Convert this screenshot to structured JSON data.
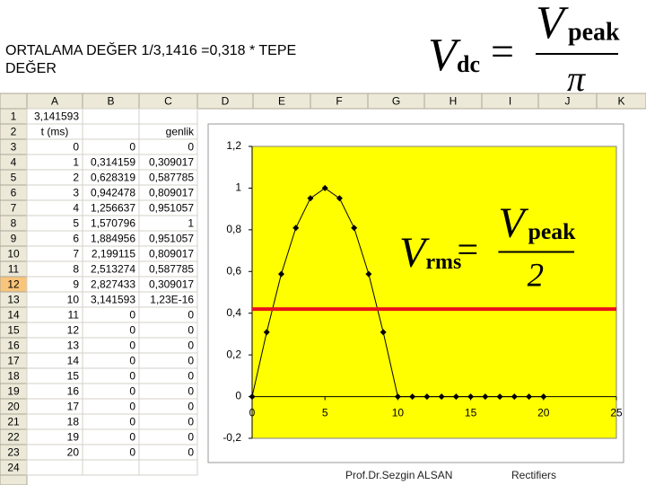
{
  "header": {
    "text": "ORTALAMA DEĞER   1/3,1416 =0,318 * TEPE DEĞER"
  },
  "formulas": [
    {
      "lhs": "V",
      "lhs_sub": "dc",
      "eq": "=",
      "num": "V",
      "num_sub": "peak",
      "den": "π"
    },
    {
      "lhs": "V",
      "lhs_sub": "rms",
      "eq": "=",
      "num": "V",
      "num_sub": "peak",
      "den": "2"
    }
  ],
  "sheet": {
    "columns": [
      "A",
      "B",
      "C",
      "D",
      "E",
      "F",
      "G",
      "H",
      "I",
      "J",
      "K"
    ],
    "rows": [
      [
        "1",
        "3,141593",
        null,
        null
      ],
      [
        "2",
        "t (ms)",
        null,
        "genlik"
      ],
      [
        "3",
        "0",
        "0",
        "0"
      ],
      [
        "4",
        "1",
        "0,314159",
        "0,309017"
      ],
      [
        "5",
        "2",
        "0,628319",
        "0,587785"
      ],
      [
        "6",
        "3",
        "0,942478",
        "0,809017"
      ],
      [
        "7",
        "4",
        "1,256637",
        "0,951057"
      ],
      [
        "8",
        "5",
        "1,570796",
        "1"
      ],
      [
        "9",
        "6",
        "1,884956",
        "0,951057"
      ],
      [
        "10",
        "7",
        "2,199115",
        "0,809017"
      ],
      [
        "11",
        "8",
        "2,513274",
        "0,587785"
      ],
      [
        "12",
        "9",
        "2,827433",
        "0,309017"
      ],
      [
        "13",
        "10",
        "3,141593",
        "1,23E-16"
      ],
      [
        "14",
        "11",
        "0",
        "0"
      ],
      [
        "15",
        "12",
        "0",
        "0"
      ],
      [
        "16",
        "13",
        "0",
        "0"
      ],
      [
        "17",
        "14",
        "0",
        "0"
      ],
      [
        "18",
        "15",
        "0",
        "0"
      ],
      [
        "19",
        "16",
        "0",
        "0"
      ],
      [
        "20",
        "17",
        "0",
        "0"
      ],
      [
        "21",
        "18",
        "0",
        "0"
      ],
      [
        "22",
        "19",
        "0",
        "0"
      ],
      [
        "23",
        "20",
        "0",
        "0"
      ],
      [
        "24",
        null,
        null,
        null
      ]
    ]
  },
  "chart_data": {
    "type": "line",
    "color": "#000000",
    "background": "#ffff00",
    "x": [
      0,
      1,
      2,
      3,
      4,
      5,
      6,
      7,
      8,
      9,
      10,
      11,
      12,
      13,
      14,
      15,
      16,
      17,
      18,
      19,
      20
    ],
    "values": [
      0,
      0.309017,
      0.587785,
      0.809017,
      0.951057,
      1,
      0.951057,
      0.809017,
      0.587785,
      0.309017,
      1.23e-16,
      0,
      0,
      0,
      0,
      0,
      0,
      0,
      0,
      0,
      0
    ],
    "xlim": [
      0,
      25
    ],
    "xticks": [
      0,
      5,
      10,
      15,
      20,
      25
    ],
    "ylim": [
      -0.2,
      1.2
    ],
    "yticks": [
      {
        "value": -0.2,
        "label": "-0,2"
      },
      0,
      {
        "value": 0.2,
        "label": "0,2"
      },
      {
        "value": 0.4,
        "label": "0,4"
      },
      {
        "value": 0.6,
        "label": "0,6"
      },
      {
        "value": 0.8,
        "label": "0,8"
      },
      1,
      {
        "value": 1.2,
        "label": "1,2"
      }
    ],
    "reference_line": {
      "value": 0.42,
      "color": "#e8141b"
    }
  },
  "footer": {
    "author": "Prof.Dr.Sezgin ALSAN",
    "topic": "Rectifiers"
  }
}
